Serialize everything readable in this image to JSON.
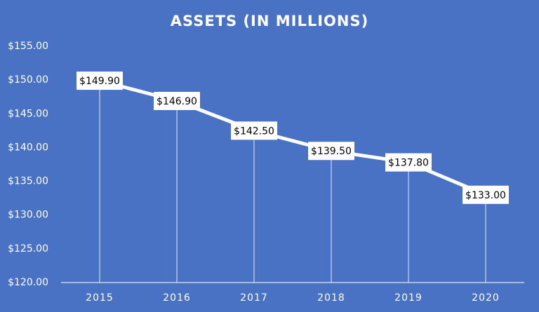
{
  "chart_data": {
    "type": "line",
    "title": "ASSETS (IN MILLIONS)",
    "categories": [
      "2015",
      "2016",
      "2017",
      "2018",
      "2019",
      "2020"
    ],
    "values": [
      149.9,
      146.9,
      142.5,
      139.5,
      137.8,
      133.0
    ],
    "value_labels": [
      "$149.90",
      "$146.90",
      "$142.50",
      "$139.50",
      "$137.80",
      "$133.00"
    ],
    "color": "#ffffff",
    "ylim": [
      120,
      155
    ],
    "yticks": [
      {
        "value": 120,
        "label": "$120.00"
      },
      {
        "value": 125,
        "label": "$125.00"
      },
      {
        "value": 130,
        "label": "$130.00"
      },
      {
        "value": 135,
        "label": "$135.00"
      },
      {
        "value": 140,
        "label": "$140.00"
      },
      {
        "value": 145,
        "label": "$145.00"
      },
      {
        "value": 150,
        "label": "$150.00"
      },
      {
        "value": 155,
        "label": "$155.00"
      }
    ],
    "drop_lines": true
  }
}
